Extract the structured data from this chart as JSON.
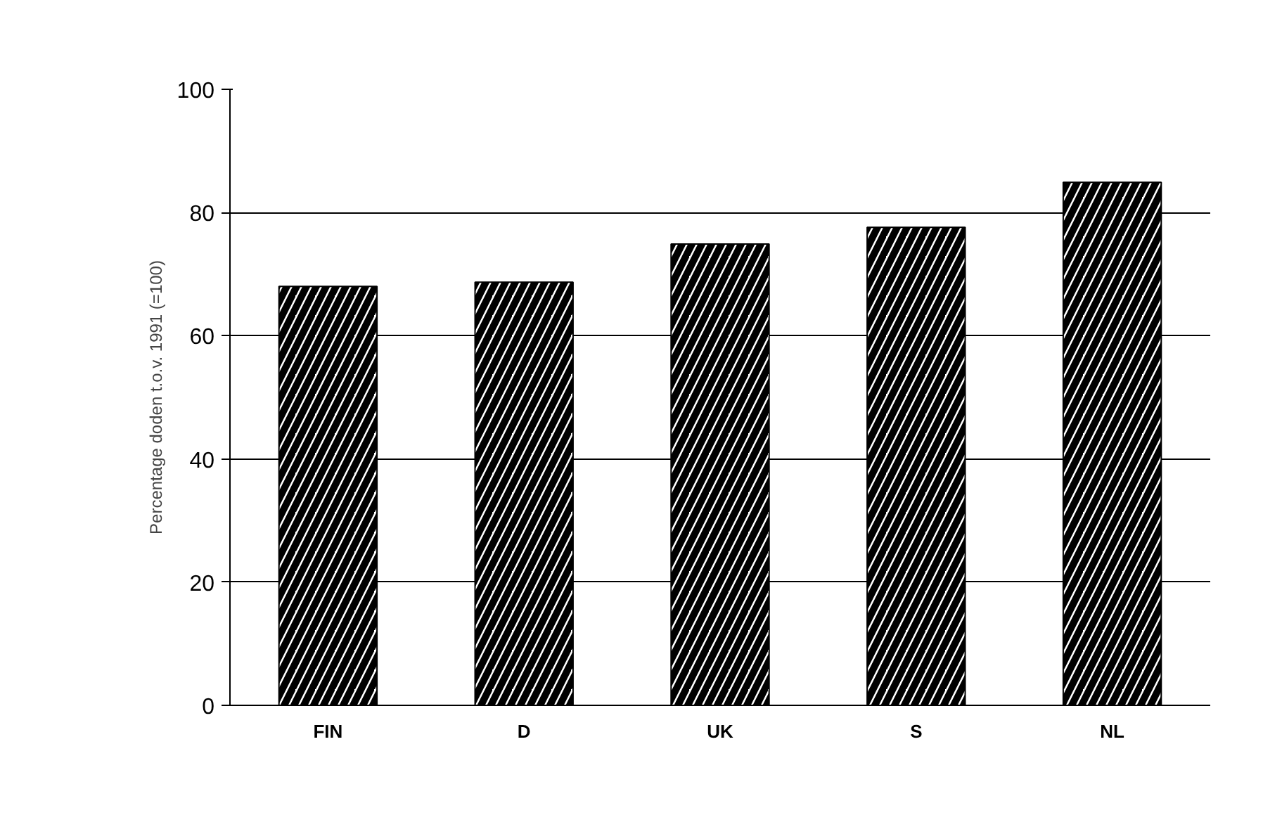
{
  "chart_data": {
    "type": "bar",
    "ylabel": "Percentage doden t.o.v. 1991 (=100)",
    "categories": [
      "FIN",
      "D",
      "UK",
      "S",
      "NL"
    ],
    "values": [
      68,
      68.7,
      74.9,
      77.6,
      84.9
    ],
    "color": "#000000",
    "ylim": [
      0,
      100
    ],
    "yticks": [
      0,
      20,
      40,
      60,
      80,
      100
    ],
    "grid": "y"
  }
}
